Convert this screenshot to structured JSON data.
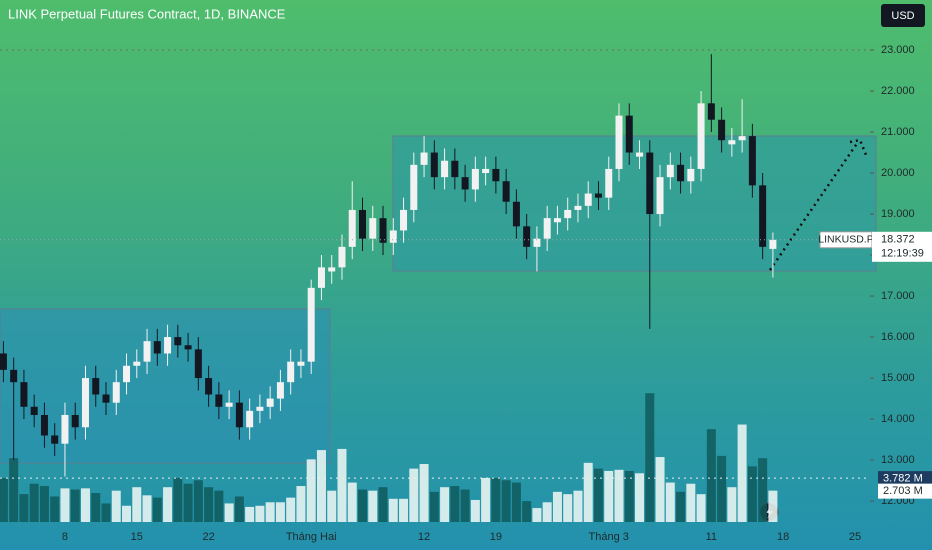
{
  "chart_data": {
    "type": "candlestick",
    "title": "LINK Perpetual Futures Contract, 1D, BINANCE",
    "currency_button": "USD",
    "symbol_tag": "LINKUSD.P",
    "countdown": "12:19:39",
    "last_price": 18.372,
    "categories": [
      null,
      null,
      null,
      null,
      null,
      null,
      "8",
      null,
      null,
      null,
      null,
      null,
      null,
      "15",
      null,
      null,
      null,
      null,
      null,
      null,
      "22",
      null,
      null,
      null,
      null,
      null,
      null,
      null,
      null,
      null,
      "Tháng Hai",
      null,
      null,
      null,
      null,
      null,
      null,
      null,
      null,
      null,
      null,
      "12",
      null,
      null,
      null,
      null,
      null,
      null,
      "19",
      null,
      null,
      null,
      null,
      null,
      null,
      null,
      null,
      null,
      null,
      "Tháng 3",
      null,
      null,
      null,
      null,
      null,
      null,
      null,
      null,
      null,
      "11",
      null,
      null,
      null,
      null,
      null,
      null,
      "18",
      null,
      null,
      null,
      null,
      null,
      null,
      "25"
    ],
    "open": [
      15.6,
      15.2,
      14.9,
      14.3,
      14.1,
      13.6,
      13.4,
      14.1,
      13.8,
      15.0,
      14.6,
      14.4,
      14.9,
      15.3,
      15.4,
      15.9,
      15.6,
      16.0,
      15.8,
      15.7,
      15.0,
      14.6,
      14.3,
      14.4,
      13.8,
      14.2,
      14.3,
      14.5,
      14.9,
      15.3,
      15.4,
      17.2,
      17.6,
      17.7,
      18.2,
      19.1,
      18.4,
      18.9,
      18.3,
      18.6,
      19.1,
      20.2,
      20.5,
      19.9,
      20.3,
      19.9,
      19.6,
      20.0,
      20.1,
      19.8,
      19.3,
      18.7,
      18.2,
      18.4,
      18.8,
      18.9,
      19.1,
      19.2,
      19.5,
      19.4,
      20.1,
      21.4,
      20.4,
      20.5,
      19.0,
      19.9,
      20.2,
      19.8,
      20.1,
      21.7,
      21.3,
      20.7,
      20.8,
      20.9,
      19.7,
      18.15,
      null,
      null,
      null,
      null,
      null,
      null,
      null,
      null
    ],
    "high": [
      15.9,
      15.5,
      15.2,
      14.6,
      14.4,
      13.9,
      14.4,
      14.4,
      15.3,
      15.3,
      14.9,
      15.2,
      15.6,
      15.7,
      16.2,
      16.2,
      16.3,
      16.3,
      16.1,
      16.0,
      15.3,
      14.9,
      14.7,
      14.7,
      14.5,
      14.6,
      14.8,
      15.2,
      15.7,
      15.7,
      17.4,
      18.0,
      18.0,
      18.5,
      19.8,
      19.4,
      19.2,
      19.2,
      18.9,
      19.4,
      20.5,
      20.9,
      20.8,
      20.6,
      20.6,
      20.2,
      20.4,
      20.4,
      20.4,
      20.1,
      19.6,
      19.0,
      18.7,
      19.2,
      19.2,
      19.4,
      19.5,
      19.8,
      19.8,
      20.4,
      21.7,
      21.7,
      20.8,
      20.8,
      20.2,
      20.5,
      20.5,
      20.4,
      22.0,
      22.9,
      21.6,
      21.1,
      21.8,
      21.2,
      20.0,
      18.55,
      null,
      null,
      null,
      null,
      null,
      null,
      null,
      null
    ],
    "low": [
      14.9,
      13.0,
      14.0,
      13.8,
      13.3,
      13.1,
      12.6,
      13.5,
      13.5,
      14.3,
      14.1,
      14.1,
      14.6,
      15.0,
      15.1,
      15.3,
      15.3,
      15.5,
      15.4,
      14.7,
      14.3,
      14.0,
      14.0,
      13.5,
      13.5,
      13.9,
      14.0,
      14.2,
      14.6,
      15.0,
      15.1,
      16.9,
      17.3,
      17.4,
      17.9,
      18.1,
      18.1,
      18.0,
      18.0,
      18.3,
      18.8,
      19.9,
      19.6,
      19.6,
      19.6,
      19.3,
      19.3,
      19.7,
      19.5,
      19.0,
      18.4,
      17.9,
      17.6,
      18.1,
      18.5,
      18.6,
      18.8,
      18.9,
      19.1,
      19.1,
      19.8,
      20.2,
      20.1,
      16.2,
      18.7,
      19.6,
      19.5,
      19.5,
      19.8,
      21.0,
      20.5,
      20.4,
      20.5,
      19.4,
      17.9,
      17.45,
      null,
      null,
      null,
      null,
      null,
      null,
      null,
      null
    ],
    "close": [
      15.2,
      14.9,
      14.3,
      14.1,
      13.6,
      13.4,
      14.1,
      13.8,
      15.0,
      14.6,
      14.4,
      14.9,
      15.3,
      15.4,
      15.9,
      15.6,
      16.0,
      15.8,
      15.7,
      15.0,
      14.6,
      14.3,
      14.4,
      13.8,
      14.2,
      14.3,
      14.5,
      14.9,
      15.4,
      15.4,
      17.2,
      17.7,
      17.7,
      18.2,
      19.1,
      18.4,
      18.9,
      18.3,
      18.6,
      19.1,
      20.2,
      20.5,
      19.9,
      20.3,
      19.9,
      19.6,
      20.1,
      20.1,
      19.8,
      19.3,
      18.7,
      18.2,
      18.4,
      18.9,
      18.9,
      19.1,
      19.2,
      19.5,
      19.4,
      20.1,
      21.4,
      20.5,
      20.5,
      19.0,
      19.9,
      20.2,
      19.8,
      20.1,
      21.7,
      21.3,
      20.8,
      20.8,
      20.9,
      19.7,
      18.2,
      18.372,
      null,
      null,
      null,
      null,
      null,
      null,
      null,
      null
    ],
    "volume": {
      "values": [
        3.8,
        5.5,
        2.4,
        3.3,
        3.1,
        2.2,
        2.9,
        2.8,
        2.9,
        2.5,
        1.6,
        2.7,
        1.4,
        3.0,
        2.3,
        2.1,
        3.0,
        3.8,
        3.3,
        3.6,
        3.0,
        2.7,
        1.6,
        2.2,
        1.3,
        1.4,
        1.7,
        1.7,
        2.1,
        3.1,
        5.4,
        6.2,
        2.7,
        6.3,
        3.4,
        2.8,
        2.7,
        3.0,
        2.0,
        2.0,
        4.6,
        5.0,
        2.6,
        3.0,
        3.1,
        2.8,
        1.9,
        3.8,
        3.8,
        3.6,
        3.4,
        1.8,
        1.2,
        1.7,
        2.6,
        2.4,
        2.7,
        5.1,
        4.6,
        4.4,
        4.5,
        4.4,
        4.2,
        11.1,
        5.6,
        3.4,
        2.6,
        3.3,
        2.4,
        8.0,
        5.7,
        3.0,
        8.4,
        4.8,
        5.5,
        2.703,
        null,
        null,
        null,
        null,
        null,
        null,
        null,
        null
      ],
      "value_labels": [
        null,
        null,
        null,
        null,
        null,
        null,
        null,
        null,
        null,
        null,
        null,
        null,
        null,
        null,
        null,
        null,
        null,
        null,
        null,
        null,
        null,
        null,
        null,
        null,
        null,
        null,
        null,
        null,
        null,
        null,
        null,
        null,
        null,
        null,
        null,
        null,
        null,
        null,
        null,
        null,
        null,
        null,
        null,
        null,
        null,
        null,
        null,
        null,
        null,
        null,
        null,
        null,
        null,
        null,
        null,
        null,
        null,
        null,
        null,
        null,
        null,
        null,
        null,
        null,
        null,
        null,
        null,
        null,
        null,
        null,
        null,
        null,
        null,
        null,
        null,
        "2.703 M",
        null,
        null,
        null,
        null,
        null,
        null,
        null,
        null
      ]
    },
    "volume_ma": {
      "value": 3.782,
      "label": "3.782 M"
    },
    "up_color": "#f2f2f2",
    "down_color": "#131722",
    "ylim": [
      11.49,
      24.22
    ],
    "volume_ylim": [
      0,
      45
    ],
    "yticks": [
      {
        "value": 12,
        "label": "12.000"
      },
      {
        "value": 13,
        "label": "13.000"
      },
      {
        "value": 14,
        "label": "14.000"
      },
      {
        "value": 15,
        "label": "15.000"
      },
      {
        "value": 16,
        "label": "16.000"
      },
      {
        "value": 17,
        "label": "17.000"
      },
      {
        "value": 18,
        "label": "18.000"
      },
      {
        "value": 19,
        "label": "19.000"
      },
      {
        "value": 20,
        "label": "20.000"
      },
      {
        "value": 21,
        "label": "21.000"
      },
      {
        "value": 22,
        "label": "22.000"
      },
      {
        "value": 23,
        "label": "23.000"
      }
    ]
  }
}
